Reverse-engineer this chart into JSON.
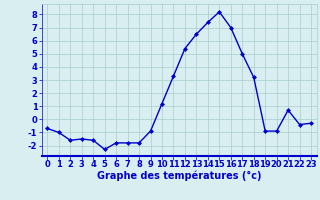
{
  "hours": [
    0,
    1,
    2,
    3,
    4,
    5,
    6,
    7,
    8,
    9,
    10,
    11,
    12,
    13,
    14,
    15,
    16,
    17,
    18,
    19,
    20,
    21,
    22,
    23
  ],
  "temps": [
    -0.7,
    -1.0,
    -1.6,
    -1.5,
    -1.6,
    -2.3,
    -1.8,
    -1.8,
    -1.8,
    -0.9,
    1.2,
    3.3,
    5.4,
    6.5,
    7.4,
    8.2,
    7.0,
    5.0,
    3.2,
    -0.9,
    -0.9,
    0.7,
    -0.4,
    -0.3
  ],
  "line_color": "#0000cc",
  "marker": "D",
  "marker_size": 2.0,
  "bg_color": "#d8eef0",
  "grid_color": "#aacccc",
  "xlabel": "Graphe des températures (°c)",
  "xlabel_color": "#0000cc",
  "tick_color": "#0000cc",
  "ylim": [
    -2.8,
    8.8
  ],
  "yticks": [
    -2,
    -1,
    0,
    1,
    2,
    3,
    4,
    5,
    6,
    7,
    8
  ],
  "axis_color": "#0000cc",
  "line_width": 1.0,
  "xlabel_fontsize": 7.0,
  "tick_fontsize": 6.0
}
